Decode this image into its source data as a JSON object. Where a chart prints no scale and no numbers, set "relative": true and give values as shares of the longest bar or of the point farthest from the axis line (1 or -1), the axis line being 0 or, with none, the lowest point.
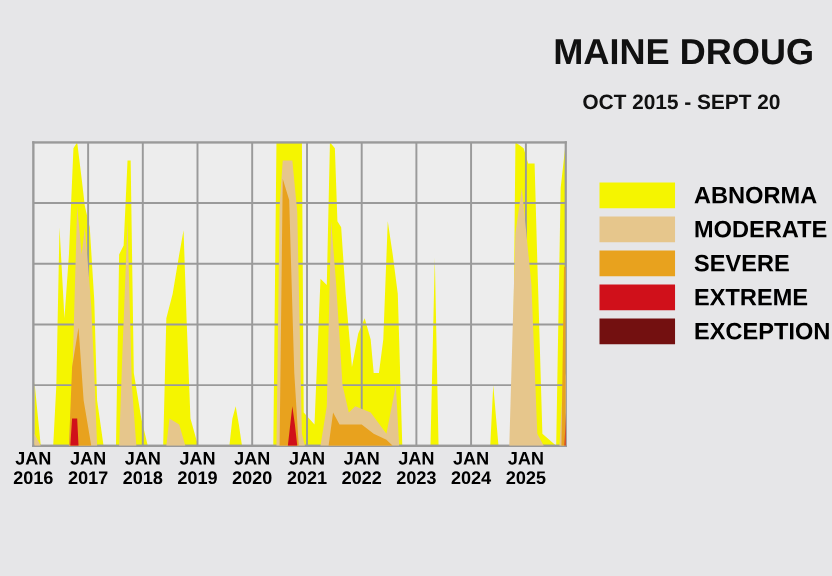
{
  "chart_data": {
    "type": "area",
    "title": "MAINE DROUG",
    "subtitle": "OCT 2015 - SEPT 20",
    "relative": true,
    "grid": true,
    "legend": "right",
    "tick_labels": "x",
    "xlim": [
      "2016-01-01",
      "2025-09-24"
    ],
    "xticks": [
      {
        "value": "2016-01-01",
        "label": "JAN\n2016"
      },
      {
        "value": "2017-01-01",
        "label": "JAN\n2017"
      },
      {
        "value": "2018-01-01",
        "label": "JAN\n2018"
      },
      {
        "value": "2019-01-01",
        "label": "JAN\n2019"
      },
      {
        "value": "2020-01-01",
        "label": "JAN\n2020"
      },
      {
        "value": "2021-01-01",
        "label": "JAN\n2021"
      },
      {
        "value": "2022-01-01",
        "label": "JAN\n2022"
      },
      {
        "value": "2023-01-01",
        "label": "JAN\n2023"
      },
      {
        "value": "2024-01-01",
        "label": "JAN\n2024"
      },
      {
        "value": "2025-01-01",
        "label": "JAN\n2025"
      }
    ],
    "series": [
      {
        "name": "ABNORMA",
        "color": "#f5f500",
        "x": [
          "2016-01-09",
          "2016-02-20",
          "2016-05-13",
          "2016-06-03",
          "2016-06-24",
          "2016-07-27",
          "2016-08-26",
          "2016-09-25",
          "2016-10-20",
          "2016-11-19",
          "2016-12-10",
          "2017-01-12",
          "2017-02-11",
          "2017-03-02",
          "2017-04-14",
          "2017-07-06",
          "2017-07-27",
          "2017-08-26",
          "2017-09-21",
          "2017-10-12",
          "2017-11-02",
          "2017-12-22",
          "2018-02-03",
          "2018-05-17",
          "2018-06-07",
          "2018-07-19",
          "2018-09-01",
          "2018-09-30",
          "2018-10-20",
          "2018-11-15",
          "2019-01-05",
          "2019-08-02",
          "2019-08-22",
          "2019-09-13",
          "2019-10-04",
          "2019-10-25",
          "2020-05-21",
          "2020-06-11",
          "2020-11-28",
          "2020-12-10",
          "2021-02-20",
          "2021-04-01",
          "2021-05-13",
          "2021-06-03",
          "2021-07-06",
          "2021-07-23",
          "2021-08-17",
          "2021-09-16",
          "2021-10-28",
          "2021-12-09",
          "2022-01-21",
          "2022-03-02",
          "2022-03-22",
          "2022-04-26",
          "2022-05-25",
          "2022-06-24",
          "2022-07-27",
          "2022-08-30",
          "2022-09-29",
          "2023-04-05",
          "2023-05-04",
          "2023-05-29",
          "2024-05-08",
          "2024-05-28",
          "2024-07-02",
          "2024-10-03",
          "2024-10-23",
          "2024-12-17",
          "2025-01-16",
          "2025-02-28",
          "2025-03-18",
          "2025-04-21",
          "2025-07-22",
          "2025-08-21",
          "2025-09-24"
        ],
        "values": [
          0.21,
          0,
          0,
          0.2,
          0.72,
          0.42,
          0.63,
          0.98,
          1,
          0.88,
          0.79,
          0.72,
          0.48,
          0.15,
          0,
          0,
          0.63,
          0.66,
          0.94,
          0.94,
          0.24,
          0.09,
          0,
          0,
          0.42,
          0.5,
          0.63,
          0.71,
          0.42,
          0.09,
          0,
          0,
          0.09,
          0.13,
          0.07,
          0,
          0,
          1,
          1,
          0.11,
          0.07,
          0.55,
          0.53,
          1,
          0.98,
          0.74,
          0.72,
          0.5,
          0.26,
          0.37,
          0.42,
          0.35,
          0.24,
          0.24,
          0.35,
          0.74,
          0.63,
          0.5,
          0,
          0,
          0.62,
          0,
          0,
          0.2,
          0,
          0,
          1,
          0.98,
          0.93,
          0.93,
          0.61,
          0.04,
          0,
          0.85,
          1
        ]
      },
      {
        "name": "MODERATE",
        "color": "#e6c68c",
        "x": [
          "2016-01-09",
          "2016-02-20",
          "2016-08-26",
          "2016-09-16",
          "2016-10-20",
          "2016-11-19",
          "2016-12-10",
          "2017-01-01",
          "2017-01-22",
          "2017-02-11",
          "2017-03-02",
          "2017-07-27",
          "2017-08-18",
          "2017-09-21",
          "2017-10-20",
          "2017-11-19",
          "2018-06-07",
          "2018-06-28",
          "2018-09-01",
          "2018-10-12",
          "2020-06-11",
          "2020-07-02",
          "2020-07-23",
          "2020-09-25",
          "2020-10-28",
          "2020-11-28",
          "2020-12-18",
          "2021-04-01",
          "2021-05-13",
          "2021-06-11",
          "2021-07-15",
          "2021-08-26",
          "2021-10-07",
          "2021-11-19",
          "2022-03-02",
          "2022-06-15",
          "2022-08-17",
          "2022-09-08",
          "2024-09-12",
          "2024-10-23",
          "2024-12-05",
          "2025-02-07",
          "2025-03-18",
          "2025-04-30",
          "2025-08-13",
          "2025-09-04",
          "2025-09-24"
        ],
        "values": [
          0.04,
          0,
          0,
          0.2,
          0.79,
          0.63,
          0.72,
          0.59,
          0.46,
          0.24,
          0,
          0,
          0.31,
          0.74,
          0.2,
          0,
          0,
          0.09,
          0.07,
          0,
          0,
          0.79,
          0.94,
          0.94,
          0.77,
          0.04,
          0,
          0,
          0.13,
          0.74,
          0.53,
          0.2,
          0.11,
          0.13,
          0.11,
          0.04,
          0.2,
          0,
          0,
          0.7,
          0.85,
          0.53,
          0.04,
          0,
          0,
          0.2,
          0.24
        ]
      },
      {
        "name": "SEVERE",
        "color": "#e8a21e",
        "x": [
          "2016-08-26",
          "2016-09-16",
          "2016-10-29",
          "2016-12-02",
          "2017-01-22",
          "2020-07-02",
          "2020-07-23",
          "2020-09-04",
          "2020-10-08",
          "2020-11-07",
          "2021-05-25",
          "2021-06-24",
          "2021-08-06",
          "2022-01-01",
          "2022-03-22",
          "2022-06-15",
          "2022-07-27",
          "2025-08-26",
          "2025-09-12",
          "2025-09-24"
        ],
        "values": [
          0,
          0.26,
          0.39,
          0.15,
          0,
          0,
          0.88,
          0.81,
          0.24,
          0,
          0,
          0.11,
          0.07,
          0.07,
          0.04,
          0.02,
          0,
          0,
          0.59,
          0.59
        ]
      },
      {
        "name": "EXTREME",
        "color": "#d0101a",
        "x": [
          "2016-09-04",
          "2016-09-16",
          "2016-10-20",
          "2016-10-29",
          "2020-08-26",
          "2020-09-25",
          "2020-10-12",
          "2020-10-28",
          "2025-09-16",
          "2025-09-24"
        ],
        "values": [
          0,
          0.09,
          0.09,
          0,
          0,
          0.13,
          0.07,
          0,
          0,
          0.11
        ]
      },
      {
        "name": "EXCEPTION",
        "color": "#731010"
      }
    ]
  }
}
